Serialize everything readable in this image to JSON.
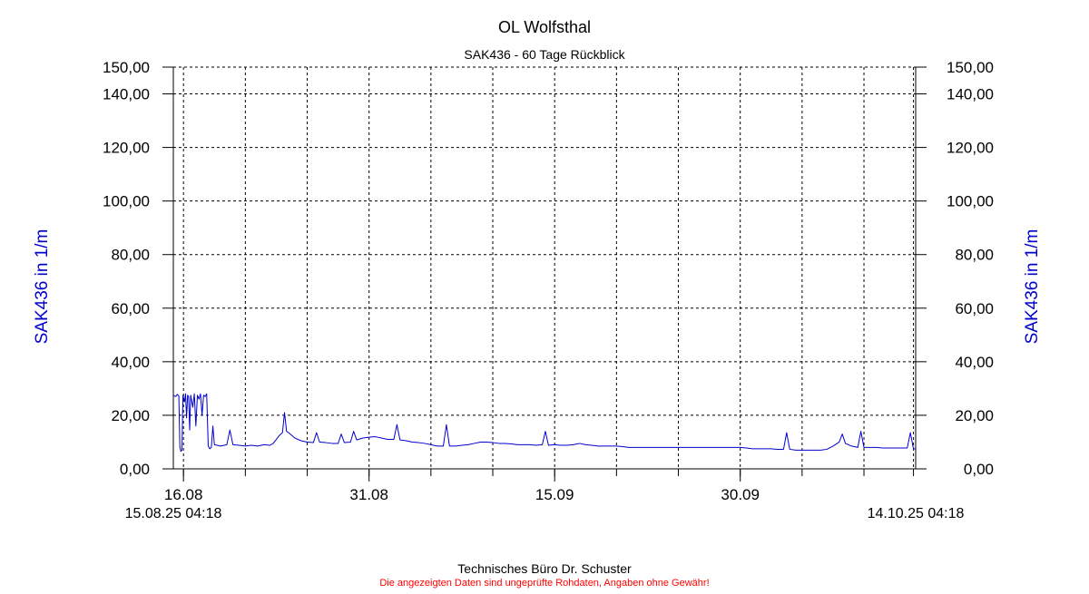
{
  "colors": {
    "series": "#0000cc",
    "axis_label": "#0000cc",
    "text": "#000000",
    "disclaimer": "#ff0000",
    "grid": "#000000"
  },
  "footer": {
    "credit": "Technisches Büro Dr. Schuster",
    "disclaimer": "Die angezeigten Daten sind ungeprüfte Rohdaten, Angaben ohne Gewähr!"
  },
  "chart_data": {
    "type": "line",
    "title": "OL Wolfsthal",
    "subtitle": "SAK436 - 60 Tage Rückblick",
    "ylabel": "SAK436 in 1/m",
    "ylabel_right": "SAK436 in 1/m",
    "ylim": [
      0,
      150
    ],
    "yticks": [
      0,
      20,
      40,
      60,
      80,
      100,
      120,
      140,
      150
    ],
    "ytick_labels": [
      "0,00",
      "20,00",
      "40,00",
      "60,00",
      "80,00",
      "100,00",
      "120,00",
      "140,00",
      "150,00"
    ],
    "xlim": [
      "2025-08-15 04:18",
      "2025-10-14 04:18"
    ],
    "x_start_label": "15.08.25 04:18",
    "x_end_label": "14.10.25 04:18",
    "xtick_major": [
      {
        "date": "2025-08-16",
        "label": "16.08"
      },
      {
        "date": "2025-08-31",
        "label": "31.08"
      },
      {
        "date": "2025-09-15",
        "label": "15.09"
      },
      {
        "date": "2025-09-30",
        "label": "30.09"
      }
    ],
    "xgrid_dates": [
      "2025-08-16",
      "2025-08-21",
      "2025-08-26",
      "2025-08-31",
      "2025-09-05",
      "2025-09-10",
      "2025-09-15",
      "2025-09-20",
      "2025-09-25",
      "2025-09-30",
      "2025-10-05",
      "2025-10-10",
      "2025-10-14"
    ],
    "grid": true,
    "series": [
      {
        "color": "#0000cc",
        "points": [
          [
            "2025-08-15 04:18",
            27.5
          ],
          [
            "2025-08-15 09:00",
            27.0
          ],
          [
            "2025-08-15 12:00",
            27.8
          ],
          [
            "2025-08-15 15:00",
            27.2
          ],
          [
            "2025-08-15 17:00",
            8.0
          ],
          [
            "2025-08-15 19:00",
            6.5
          ],
          [
            "2025-08-15 21:00",
            7.0
          ],
          [
            "2025-08-15 23:00",
            27.5
          ],
          [
            "2025-08-16 02:00",
            25.0
          ],
          [
            "2025-08-16 04:00",
            28.0
          ],
          [
            "2025-08-16 06:00",
            19.0
          ],
          [
            "2025-08-16 08:00",
            27.5
          ],
          [
            "2025-08-16 10:00",
            27.0
          ],
          [
            "2025-08-16 12:00",
            14.5
          ],
          [
            "2025-08-16 14:00",
            27.5
          ],
          [
            "2025-08-16 18:00",
            23.0
          ],
          [
            "2025-08-16 21:00",
            28.0
          ],
          [
            "2025-08-17 00:00",
            16.0
          ],
          [
            "2025-08-17 03:00",
            27.5
          ],
          [
            "2025-08-17 06:00",
            26.0
          ],
          [
            "2025-08-17 09:00",
            28.0
          ],
          [
            "2025-08-17 12:00",
            20.0
          ],
          [
            "2025-08-17 15:00",
            27.5
          ],
          [
            "2025-08-17 18:00",
            27.0
          ],
          [
            "2025-08-17 21:00",
            28.0
          ],
          [
            "2025-08-18 00:00",
            8.5
          ],
          [
            "2025-08-18 03:00",
            7.5
          ],
          [
            "2025-08-18 06:00",
            8.0
          ],
          [
            "2025-08-18 09:00",
            16.0
          ],
          [
            "2025-08-18 12:00",
            9.0
          ],
          [
            "2025-08-19 00:00",
            8.5
          ],
          [
            "2025-08-19 12:00",
            9.0
          ],
          [
            "2025-08-19 18:00",
            14.5
          ],
          [
            "2025-08-20 00:00",
            9.0
          ],
          [
            "2025-08-20 12:00",
            8.8
          ],
          [
            "2025-08-21 00:00",
            8.5
          ],
          [
            "2025-08-21 12:00",
            8.8
          ],
          [
            "2025-08-22 00:00",
            8.5
          ],
          [
            "2025-08-22 12:00",
            9.0
          ],
          [
            "2025-08-23 00:00",
            8.8
          ],
          [
            "2025-08-23 06:00",
            9.5
          ],
          [
            "2025-08-23 12:00",
            11.0
          ],
          [
            "2025-08-23 18:00",
            12.5
          ],
          [
            "2025-08-24 00:00",
            13.5
          ],
          [
            "2025-08-24 04:00",
            21.0
          ],
          [
            "2025-08-24 08:00",
            14.0
          ],
          [
            "2025-08-24 12:00",
            13.5
          ],
          [
            "2025-08-24 18:00",
            12.5
          ],
          [
            "2025-08-25 00:00",
            11.5
          ],
          [
            "2025-08-25 12:00",
            10.5
          ],
          [
            "2025-08-26 00:00",
            10.0
          ],
          [
            "2025-08-26 12:00",
            9.8
          ],
          [
            "2025-08-26 18:00",
            13.5
          ],
          [
            "2025-08-27 00:00",
            10.0
          ],
          [
            "2025-08-27 12:00",
            9.8
          ],
          [
            "2025-08-28 00:00",
            9.5
          ],
          [
            "2025-08-28 12:00",
            9.5
          ],
          [
            "2025-08-28 18:00",
            13.0
          ],
          [
            "2025-08-29 00:00",
            9.8
          ],
          [
            "2025-08-29 12:00",
            10.0
          ],
          [
            "2025-08-29 18:00",
            14.0
          ],
          [
            "2025-08-30 00:00",
            10.8
          ],
          [
            "2025-08-30 12:00",
            11.5
          ],
          [
            "2025-08-31 00:00",
            11.8
          ],
          [
            "2025-08-31 12:00",
            12.0
          ],
          [
            "2025-09-01 00:00",
            11.5
          ],
          [
            "2025-09-01 12:00",
            11.0
          ],
          [
            "2025-09-02 00:00",
            11.0
          ],
          [
            "2025-09-02 06:00",
            16.5
          ],
          [
            "2025-09-02 12:00",
            10.8
          ],
          [
            "2025-09-03 00:00",
            10.5
          ],
          [
            "2025-09-03 12:00",
            10.0
          ],
          [
            "2025-09-04 00:00",
            9.8
          ],
          [
            "2025-09-04 12:00",
            9.5
          ],
          [
            "2025-09-05 00:00",
            9.0
          ],
          [
            "2025-09-05 12:00",
            8.5
          ],
          [
            "2025-09-06 00:00",
            8.5
          ],
          [
            "2025-09-06 06:00",
            16.5
          ],
          [
            "2025-09-06 12:00",
            8.5
          ],
          [
            "2025-09-07 00:00",
            8.5
          ],
          [
            "2025-09-07 12:00",
            8.8
          ],
          [
            "2025-09-08 00:00",
            9.0
          ],
          [
            "2025-09-08 12:00",
            9.5
          ],
          [
            "2025-09-09 00:00",
            10.0
          ],
          [
            "2025-09-09 12:00",
            10.0
          ],
          [
            "2025-09-10 00:00",
            9.8
          ],
          [
            "2025-09-10 12:00",
            9.5
          ],
          [
            "2025-09-11 00:00",
            9.5
          ],
          [
            "2025-09-11 12:00",
            9.3
          ],
          [
            "2025-09-12 00:00",
            9.0
          ],
          [
            "2025-09-12 12:00",
            9.0
          ],
          [
            "2025-09-13 00:00",
            9.0
          ],
          [
            "2025-09-13 12:00",
            8.8
          ],
          [
            "2025-09-14 00:00",
            9.0
          ],
          [
            "2025-09-14 06:00",
            14.0
          ],
          [
            "2025-09-14 12:00",
            8.8
          ],
          [
            "2025-09-15 00:00",
            9.0
          ],
          [
            "2025-09-15 12:00",
            8.8
          ],
          [
            "2025-09-16 00:00",
            8.8
          ],
          [
            "2025-09-16 12:00",
            9.0
          ],
          [
            "2025-09-17 00:00",
            9.5
          ],
          [
            "2025-09-17 12:00",
            9.0
          ],
          [
            "2025-09-18 00:00",
            8.8
          ],
          [
            "2025-09-18 12:00",
            8.5
          ],
          [
            "2025-09-19 00:00",
            8.5
          ],
          [
            "2025-09-19 12:00",
            8.5
          ],
          [
            "2025-09-20 00:00",
            8.5
          ],
          [
            "2025-09-20 12:00",
            8.3
          ],
          [
            "2025-09-21 00:00",
            8.0
          ],
          [
            "2025-09-21 12:00",
            8.0
          ],
          [
            "2025-09-22 00:00",
            8.0
          ],
          [
            "2025-09-22 12:00",
            8.0
          ],
          [
            "2025-09-23 00:00",
            8.0
          ],
          [
            "2025-09-23 12:00",
            8.0
          ],
          [
            "2025-09-24 00:00",
            8.0
          ],
          [
            "2025-09-24 12:00",
            8.0
          ],
          [
            "2025-09-25 00:00",
            8.0
          ],
          [
            "2025-09-25 12:00",
            8.0
          ],
          [
            "2025-09-26 00:00",
            8.0
          ],
          [
            "2025-09-26 12:00",
            8.0
          ],
          [
            "2025-09-27 00:00",
            8.0
          ],
          [
            "2025-09-27 12:00",
            8.0
          ],
          [
            "2025-09-28 00:00",
            8.0
          ],
          [
            "2025-09-28 12:00",
            8.0
          ],
          [
            "2025-09-29 00:00",
            8.0
          ],
          [
            "2025-09-29 12:00",
            8.0
          ],
          [
            "2025-09-30 00:00",
            8.0
          ],
          [
            "2025-09-30 12:00",
            7.8
          ],
          [
            "2025-10-01 00:00",
            7.5
          ],
          [
            "2025-10-01 12:00",
            7.5
          ],
          [
            "2025-10-02 00:00",
            7.5
          ],
          [
            "2025-10-02 12:00",
            7.5
          ],
          [
            "2025-10-03 00:00",
            7.3
          ],
          [
            "2025-10-03 12:00",
            7.3
          ],
          [
            "2025-10-03 18:00",
            13.5
          ],
          [
            "2025-10-04 00:00",
            7.3
          ],
          [
            "2025-10-04 12:00",
            7.0
          ],
          [
            "2025-10-05 00:00",
            7.0
          ],
          [
            "2025-10-05 12:00",
            7.0
          ],
          [
            "2025-10-06 00:00",
            7.0
          ],
          [
            "2025-10-06 12:00",
            7.0
          ],
          [
            "2025-10-07 00:00",
            7.3
          ],
          [
            "2025-10-07 12:00",
            8.5
          ],
          [
            "2025-10-08 00:00",
            10.0
          ],
          [
            "2025-10-08 06:00",
            13.0
          ],
          [
            "2025-10-08 12:00",
            9.5
          ],
          [
            "2025-10-09 00:00",
            8.5
          ],
          [
            "2025-10-09 12:00",
            8.0
          ],
          [
            "2025-10-09 18:00",
            14.0
          ],
          [
            "2025-10-10 00:00",
            8.0
          ],
          [
            "2025-10-10 12:00",
            8.0
          ],
          [
            "2025-10-11 00:00",
            8.0
          ],
          [
            "2025-10-11 12:00",
            7.8
          ],
          [
            "2025-10-12 00:00",
            7.8
          ],
          [
            "2025-10-12 12:00",
            7.8
          ],
          [
            "2025-10-13 00:00",
            7.8
          ],
          [
            "2025-10-13 12:00",
            7.8
          ],
          [
            "2025-10-13 18:00",
            13.5
          ],
          [
            "2025-10-14 00:00",
            7.5
          ],
          [
            "2025-10-14 04:18",
            7.5
          ]
        ]
      }
    ]
  }
}
